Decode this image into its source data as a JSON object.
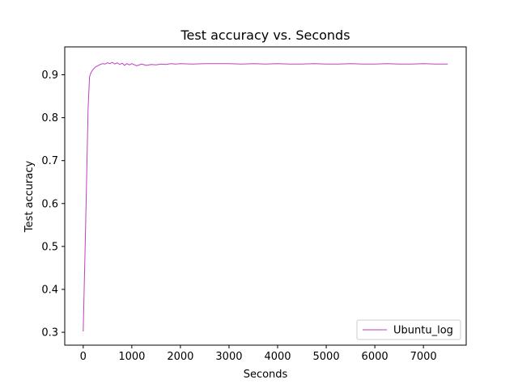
{
  "chart_data": {
    "type": "line",
    "title": "Test accuracy  vs. Seconds",
    "xlabel": "Seconds",
    "ylabel": "Test accuracy",
    "xlim": [
      -380,
      7880
    ],
    "ylim": [
      0.27,
      0.965
    ],
    "xticks": [
      0,
      1000,
      2000,
      3000,
      4000,
      5000,
      6000,
      7000
    ],
    "yticks": [
      0.3,
      0.4,
      0.5,
      0.6,
      0.7,
      0.8,
      0.9
    ],
    "xtick_labels": [
      "0",
      "1000",
      "2000",
      "3000",
      "4000",
      "5000",
      "6000",
      "7000"
    ],
    "ytick_labels": [
      "0.3",
      "0.4",
      "0.5",
      "0.6",
      "0.7",
      "0.8",
      "0.9"
    ],
    "grid": false,
    "legend_position": "lower-right",
    "series": [
      {
        "name": "Ubuntu_log",
        "color": "#bf40bf",
        "x": [
          0,
          50,
          100,
          130,
          160,
          200,
          250,
          300,
          350,
          400,
          450,
          500,
          550,
          600,
          650,
          700,
          750,
          800,
          850,
          900,
          950,
          1000,
          1100,
          1200,
          1300,
          1400,
          1500,
          1600,
          1700,
          1800,
          1900,
          2000,
          2250,
          2500,
          2750,
          3000,
          3250,
          3500,
          3750,
          4000,
          4250,
          4500,
          4750,
          5000,
          5250,
          5500,
          5750,
          6000,
          6250,
          6500,
          6750,
          7000,
          7250,
          7500
        ],
        "y": [
          0.302,
          0.55,
          0.82,
          0.895,
          0.905,
          0.912,
          0.918,
          0.921,
          0.924,
          0.926,
          0.925,
          0.928,
          0.926,
          0.929,
          0.925,
          0.928,
          0.924,
          0.927,
          0.922,
          0.926,
          0.923,
          0.926,
          0.921,
          0.925,
          0.922,
          0.924,
          0.923,
          0.925,
          0.924,
          0.926,
          0.925,
          0.926,
          0.925,
          0.926,
          0.926,
          0.926,
          0.925,
          0.926,
          0.925,
          0.926,
          0.925,
          0.925,
          0.926,
          0.925,
          0.925,
          0.926,
          0.925,
          0.925,
          0.926,
          0.925,
          0.925,
          0.926,
          0.925,
          0.925
        ]
      }
    ]
  }
}
